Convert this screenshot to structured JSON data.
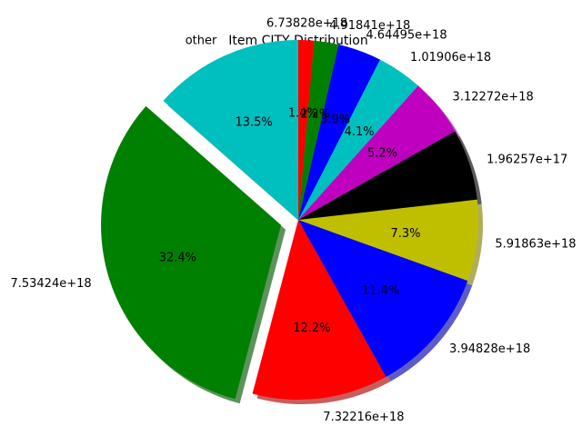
{
  "chart_data": {
    "type": "pie",
    "title": "Item CITY Distribution",
    "start_angle_deg": 90,
    "direction": "counterclockwise",
    "shadow": true,
    "slices": [
      {
        "label": "other",
        "percent": 13.5,
        "pct_label": "13.5%",
        "color": "#00bfbf",
        "explode": false
      },
      {
        "label": "7.53424e+18",
        "percent": 32.4,
        "pct_label": "32.4%",
        "color": "#008000",
        "explode": true
      },
      {
        "label": "7.32216e+18",
        "percent": 12.2,
        "pct_label": "12.2%",
        "color": "#ff0000",
        "explode": false
      },
      {
        "label": "3.94828e+18",
        "percent": 11.4,
        "pct_label": "11.4%",
        "color": "#0000ff",
        "explode": false
      },
      {
        "label": "5.91863e+18",
        "percent": 7.3,
        "pct_label": "7.3%",
        "color": "#bfbf00",
        "explode": false
      },
      {
        "label": "1.96257e+17",
        "percent": 6.4,
        "pct_label": "",
        "color": "#000000",
        "explode": false
      },
      {
        "label": "3.12272e+18",
        "percent": 5.2,
        "pct_label": "5.2%",
        "color": "#bf00bf",
        "explode": false
      },
      {
        "label": "1.01906e+18",
        "percent": 4.1,
        "pct_label": "4.1%",
        "color": "#00bfbf",
        "explode": false
      },
      {
        "label": "4.64495e+18",
        "percent": 3.9,
        "pct_label": "3.9%",
        "color": "#0000ff",
        "explode": false
      },
      {
        "label": "4.91841e+18",
        "percent": 2.2,
        "pct_label": "2.2%",
        "color": "#008000",
        "explode": false
      },
      {
        "label": "6.73828e+18",
        "percent": 1.4,
        "pct_label": "1.4%",
        "color": "#ff0000",
        "explode": false
      }
    ]
  }
}
